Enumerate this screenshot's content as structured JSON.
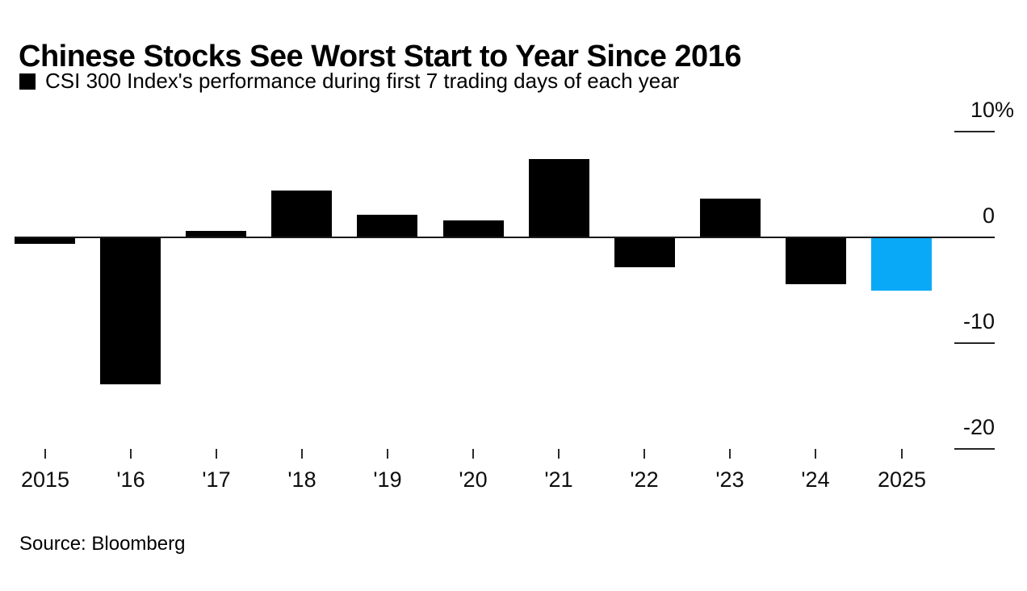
{
  "header": {
    "title": "Chinese Stocks See Worst Start to Year Since 2016"
  },
  "legend": {
    "swatch_icon": "black-square-icon",
    "swatch_color": "#000000",
    "label": "CSI 300 Index's performance during first 7 trading days of each year"
  },
  "chart_data": {
    "type": "bar",
    "title": "Chinese Stocks See Worst Start to Year Since 2016",
    "subtitle": "CSI 300 Index's performance during first 7 trading days of each year",
    "categories": [
      "2015",
      "'16",
      "'17",
      "'18",
      "'19",
      "'20",
      "'21",
      "'22",
      "'23",
      "'24",
      "2025"
    ],
    "values": [
      -0.6,
      -13.9,
      0.6,
      4.4,
      2.1,
      1.6,
      7.4,
      -2.8,
      3.7,
      -4.4,
      -5.0
    ],
    "unit": "%",
    "xlabel": "",
    "ylabel": "",
    "ylim": [
      -22,
      11
    ],
    "y_ticks": [
      {
        "label": "10",
        "suffix": "%",
        "value": 10
      },
      {
        "label": "0",
        "suffix": "",
        "value": 0
      },
      {
        "label": "-10",
        "suffix": "",
        "value": -10
      },
      {
        "label": "-20",
        "suffix": "",
        "value": -20
      }
    ],
    "grid": "right-side tick dashes only, full-width zero baseline",
    "legend_position": "top-left",
    "bar_color": "#000000",
    "highlight_color": "#0aa9f7",
    "highlight_index": 10
  },
  "footer": {
    "source": "Source: Bloomberg"
  }
}
